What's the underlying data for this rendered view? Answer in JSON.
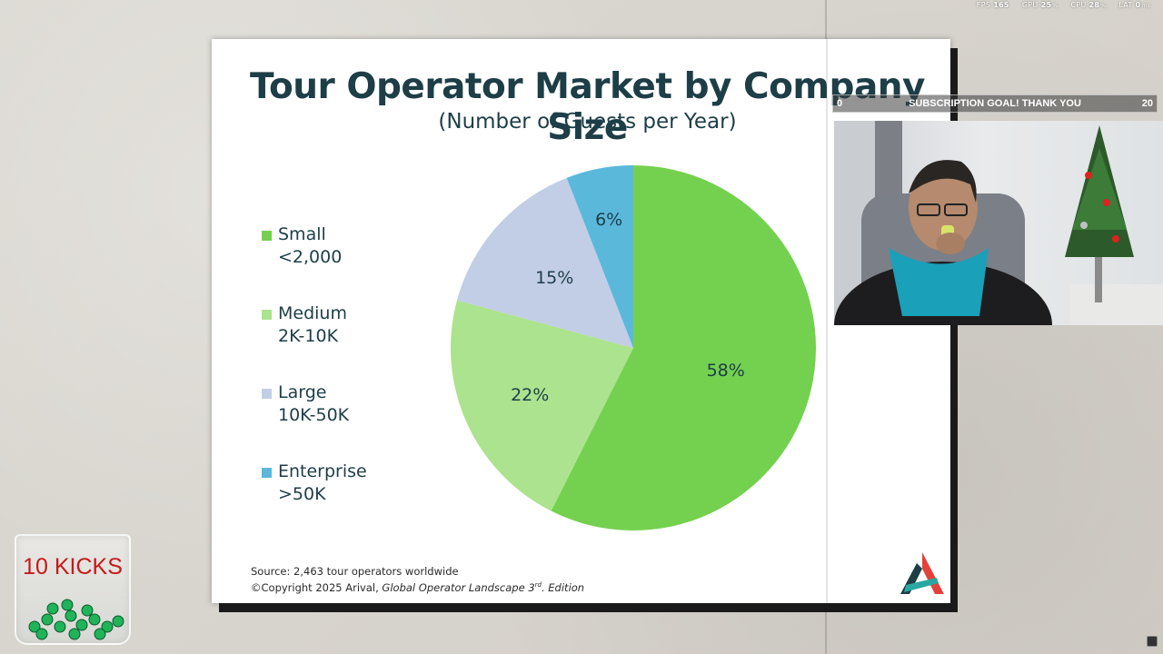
{
  "stats": {
    "fps": {
      "label": "FPS",
      "value": "165",
      "unit": ""
    },
    "gpu": {
      "label": "GPU",
      "value": "25",
      "unit": "%"
    },
    "cpu": {
      "label": "CPU",
      "value": "28",
      "unit": "%"
    },
    "lat": {
      "label": "LAT",
      "value": "0",
      "unit": "ms"
    }
  },
  "goal": {
    "min": "0",
    "label": "SUBSCRIPTION GOAL! THANK YOU",
    "max": "20"
  },
  "kicks": {
    "label": "10 KICKS"
  },
  "source": {
    "line1": "Source: 2,463 tour operators worldwide",
    "line2_prefix": "©Copyright 2025 Arival, ",
    "line2_italic": "Global Operator Landscape 3",
    "line2_sup": "rd",
    "line2_suffix": ". Edition"
  },
  "colors": {
    "small": "#74d14f",
    "medium": "#ace38e",
    "large": "#c2cde6",
    "enterprise": "#5ab8db",
    "title": "#1d3e47"
  },
  "chart_data": {
    "type": "pie",
    "title": "Tour Operator Market by Company Size",
    "subtitle": "(Number of Guests per Year)",
    "legend_position": "left",
    "slices": [
      {
        "name": "Small",
        "range": "<2,000",
        "value": 58,
        "label": "58%",
        "color": "#74d14f"
      },
      {
        "name": "Medium",
        "range": "2K-10K",
        "value": 22,
        "label": "22%",
        "color": "#ace38e"
      },
      {
        "name": "Large",
        "range": "10K-50K",
        "value": 15,
        "label": "15%",
        "color": "#c2cde6"
      },
      {
        "name": "Enterprise",
        "range": ">50K",
        "value": 6,
        "label": "6%",
        "color": "#5ab8db"
      }
    ]
  }
}
